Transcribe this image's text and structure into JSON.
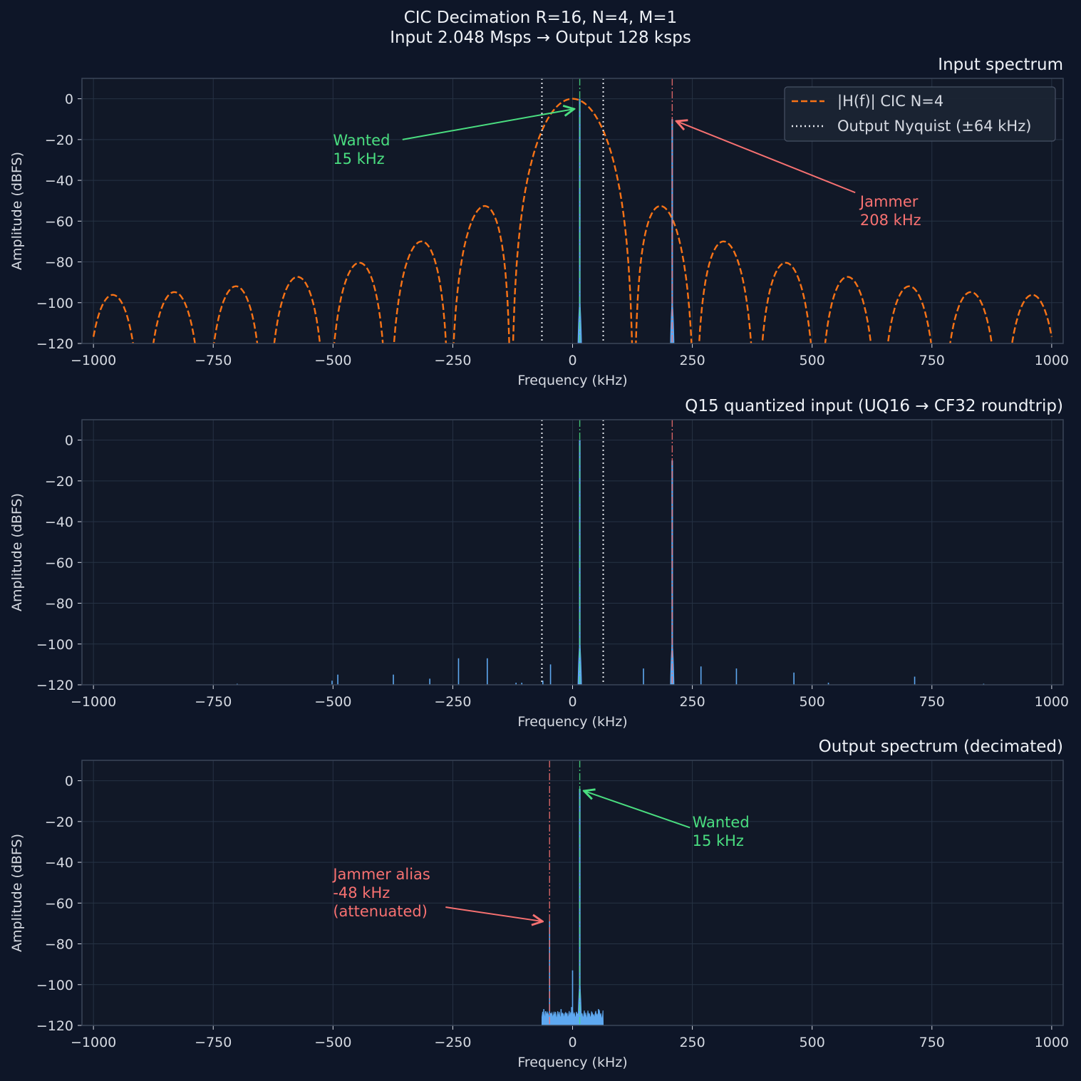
{
  "figure": {
    "suptitle_line1": "CIC Decimation  R=16, N=4, M=1",
    "suptitle_line2": "Input 2.048 Msps → Output 128 ksps"
  },
  "colors": {
    "background": "#0e1628",
    "axes_face": "#111827",
    "spine": "#3a4558",
    "grid": "#263244",
    "spectrum": "#5ea8f0",
    "cic_response": "#f97316",
    "nyquist": "#e6e9ef",
    "wanted": "#4ade80",
    "jammer": "#f87171",
    "text": "#d6dae2"
  },
  "chart_data": [
    {
      "type": "line",
      "title": "Input spectrum",
      "xlabel": "Frequency (kHz)",
      "ylabel": "Amplitude (dBFS)",
      "xlim": [
        -1024,
        1024
      ],
      "ylim": [
        -120,
        10
      ],
      "xticks": [
        -1000,
        -750,
        -500,
        -250,
        0,
        250,
        500,
        750,
        1000
      ],
      "yticks": [
        0,
        -20,
        -40,
        -60,
        -80,
        -100,
        -120
      ],
      "grid": true,
      "legend_position": "top-right",
      "legend": [
        {
          "label": "|H(f)| CIC N=4",
          "style": "dashed",
          "color": "#f97316"
        },
        {
          "label": "Output Nyquist (±64 kHz)",
          "style": "dotted",
          "color": "#e6e9ef"
        }
      ],
      "cic_response": {
        "name": "|H(f)| CIC N=4",
        "R": 16,
        "N": 4,
        "fs_khz": 2048,
        "lobe_peaks_db": [
          -53,
          -70,
          -80,
          -87,
          -92,
          -95,
          -96
        ]
      },
      "nyquist_lines_khz": [
        -64,
        64
      ],
      "markers": [
        {
          "x": 15,
          "kind": "wanted"
        },
        {
          "x": 208,
          "kind": "jammer"
        }
      ],
      "spectrum_peaks": [
        {
          "x": 15,
          "y": 0
        },
        {
          "x": 208,
          "y": -10
        }
      ],
      "annotations": [
        {
          "line1": "Wanted",
          "line2": "15 kHz",
          "kind": "wanted",
          "target_x": 15,
          "target_y": -5
        },
        {
          "line1": "Jammer",
          "line2": "208 kHz",
          "kind": "jammer",
          "target_x": 208,
          "target_y": -11
        }
      ]
    },
    {
      "type": "line",
      "title": "Q15 quantized input (UQ16 → CF32 roundtrip)",
      "xlabel": "Frequency (kHz)",
      "ylabel": "Amplitude (dBFS)",
      "xlim": [
        -1024,
        1024
      ],
      "ylim": [
        -120,
        10
      ],
      "xticks": [
        -1000,
        -750,
        -500,
        -250,
        0,
        250,
        500,
        750,
        1000
      ],
      "yticks": [
        0,
        -20,
        -40,
        -60,
        -80,
        -100,
        -120
      ],
      "grid": true,
      "nyquist_lines_khz": [
        -64,
        64
      ],
      "markers": [
        {
          "x": 15,
          "kind": "wanted"
        },
        {
          "x": 208,
          "kind": "jammer"
        }
      ],
      "spectrum_peaks": [
        {
          "x": 15,
          "y": 0
        },
        {
          "x": 208,
          "y": -10
        },
        {
          "x": -700,
          "y": -119.5
        },
        {
          "x": -502,
          "y": -118
        },
        {
          "x": -490,
          "y": -115
        },
        {
          "x": -374,
          "y": -115
        },
        {
          "x": -298,
          "y": -117
        },
        {
          "x": -238,
          "y": -107
        },
        {
          "x": -178,
          "y": -107
        },
        {
          "x": -118,
          "y": -119
        },
        {
          "x": -106,
          "y": -119
        },
        {
          "x": -62,
          "y": -118
        },
        {
          "x": -46,
          "y": -110
        },
        {
          "x": 148,
          "y": -112
        },
        {
          "x": 268,
          "y": -111
        },
        {
          "x": 342,
          "y": -112
        },
        {
          "x": 462,
          "y": -114
        },
        {
          "x": 534,
          "y": -119
        },
        {
          "x": 714,
          "y": -116
        },
        {
          "x": 858,
          "y": -119.5
        }
      ]
    },
    {
      "type": "line",
      "title": "Output spectrum  (decimated)",
      "xlabel": "Frequency (kHz)",
      "ylabel": "Amplitude (dBFS)",
      "xlim": [
        -1024,
        1024
      ],
      "ylim": [
        -120,
        10
      ],
      "xticks": [
        -1000,
        -750,
        -500,
        -250,
        0,
        250,
        500,
        750,
        1000
      ],
      "yticks": [
        0,
        -20,
        -40,
        -60,
        -80,
        -100,
        -120
      ],
      "grid": true,
      "spectrum_range_khz": [
        -64,
        64
      ],
      "markers": [
        {
          "x": -48,
          "kind": "jammer"
        },
        {
          "x": 15,
          "kind": "wanted"
        }
      ],
      "spectrum_peaks": [
        {
          "x": 15,
          "y": -4
        },
        {
          "x": -48,
          "y": -69
        },
        {
          "x": 0,
          "y": -93
        },
        {
          "x": -60,
          "y": -112
        },
        {
          "x": -56,
          "y": -113
        },
        {
          "x": -40,
          "y": -115
        },
        {
          "x": -24,
          "y": -112
        },
        {
          "x": -2,
          "y": -111
        },
        {
          "x": 28,
          "y": -115
        },
        {
          "x": 40,
          "y": -114
        },
        {
          "x": 54,
          "y": -112
        }
      ],
      "annotations": [
        {
          "line1": "Wanted",
          "line2": "15 kHz",
          "kind": "wanted",
          "target_x": 15,
          "target_y": -5
        },
        {
          "line1": "Jammer alias",
          "line2": "-48 kHz",
          "line3": "(attenuated)",
          "kind": "jammer",
          "target_x": -48,
          "target_y": -69
        }
      ]
    }
  ]
}
